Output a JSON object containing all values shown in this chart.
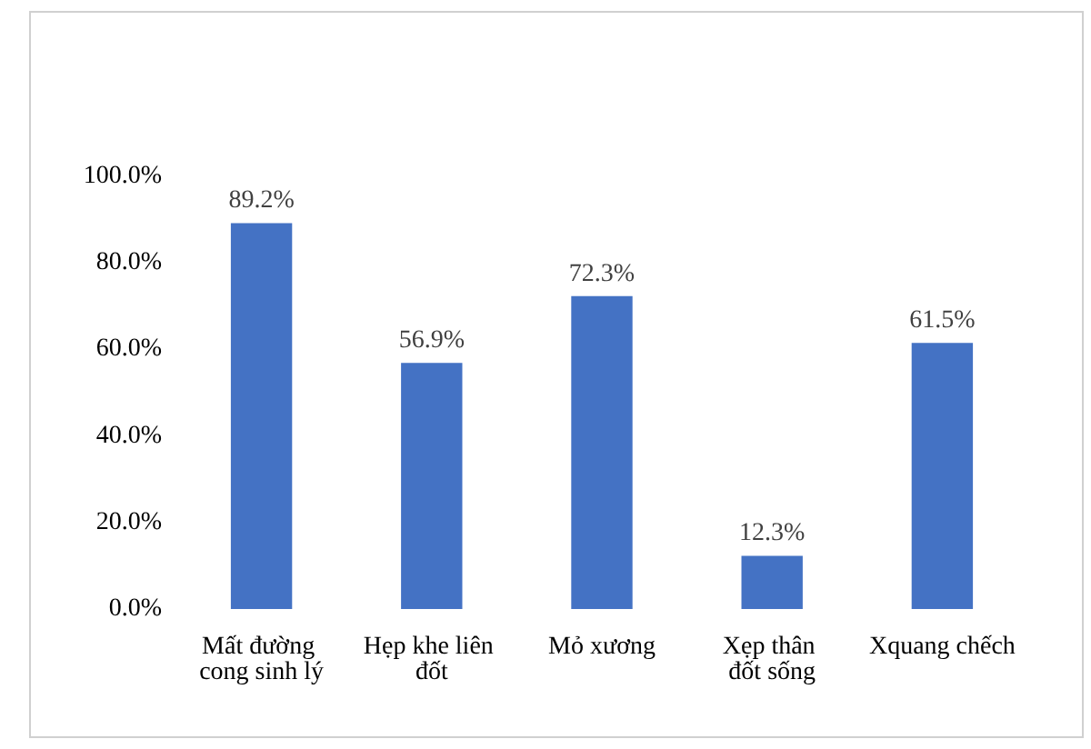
{
  "chart_data": {
    "type": "bar",
    "categories": [
      "Mất đường cong sinh lý",
      "Hẹp khe liên đốt",
      "Mỏ xương",
      "Xẹp thân đốt sống",
      "Xquang chếch"
    ],
    "values": [
      89.2,
      56.9,
      72.3,
      12.3,
      61.5
    ],
    "value_labels": [
      "89.2%",
      "56.9%",
      "72.3%",
      "12.3%",
      "61.5%"
    ],
    "color": "#4472c4",
    "ylim": [
      0,
      100
    ],
    "yticks": [
      {
        "value": 0,
        "label": "0.0%"
      },
      {
        "value": 20,
        "label": "20.0%"
      },
      {
        "value": 40,
        "label": "40.0%"
      },
      {
        "value": 60,
        "label": "60.0%"
      },
      {
        "value": 80,
        "label": "80.0%"
      },
      {
        "value": 100,
        "label": "100.0%"
      }
    ],
    "grid": false
  }
}
